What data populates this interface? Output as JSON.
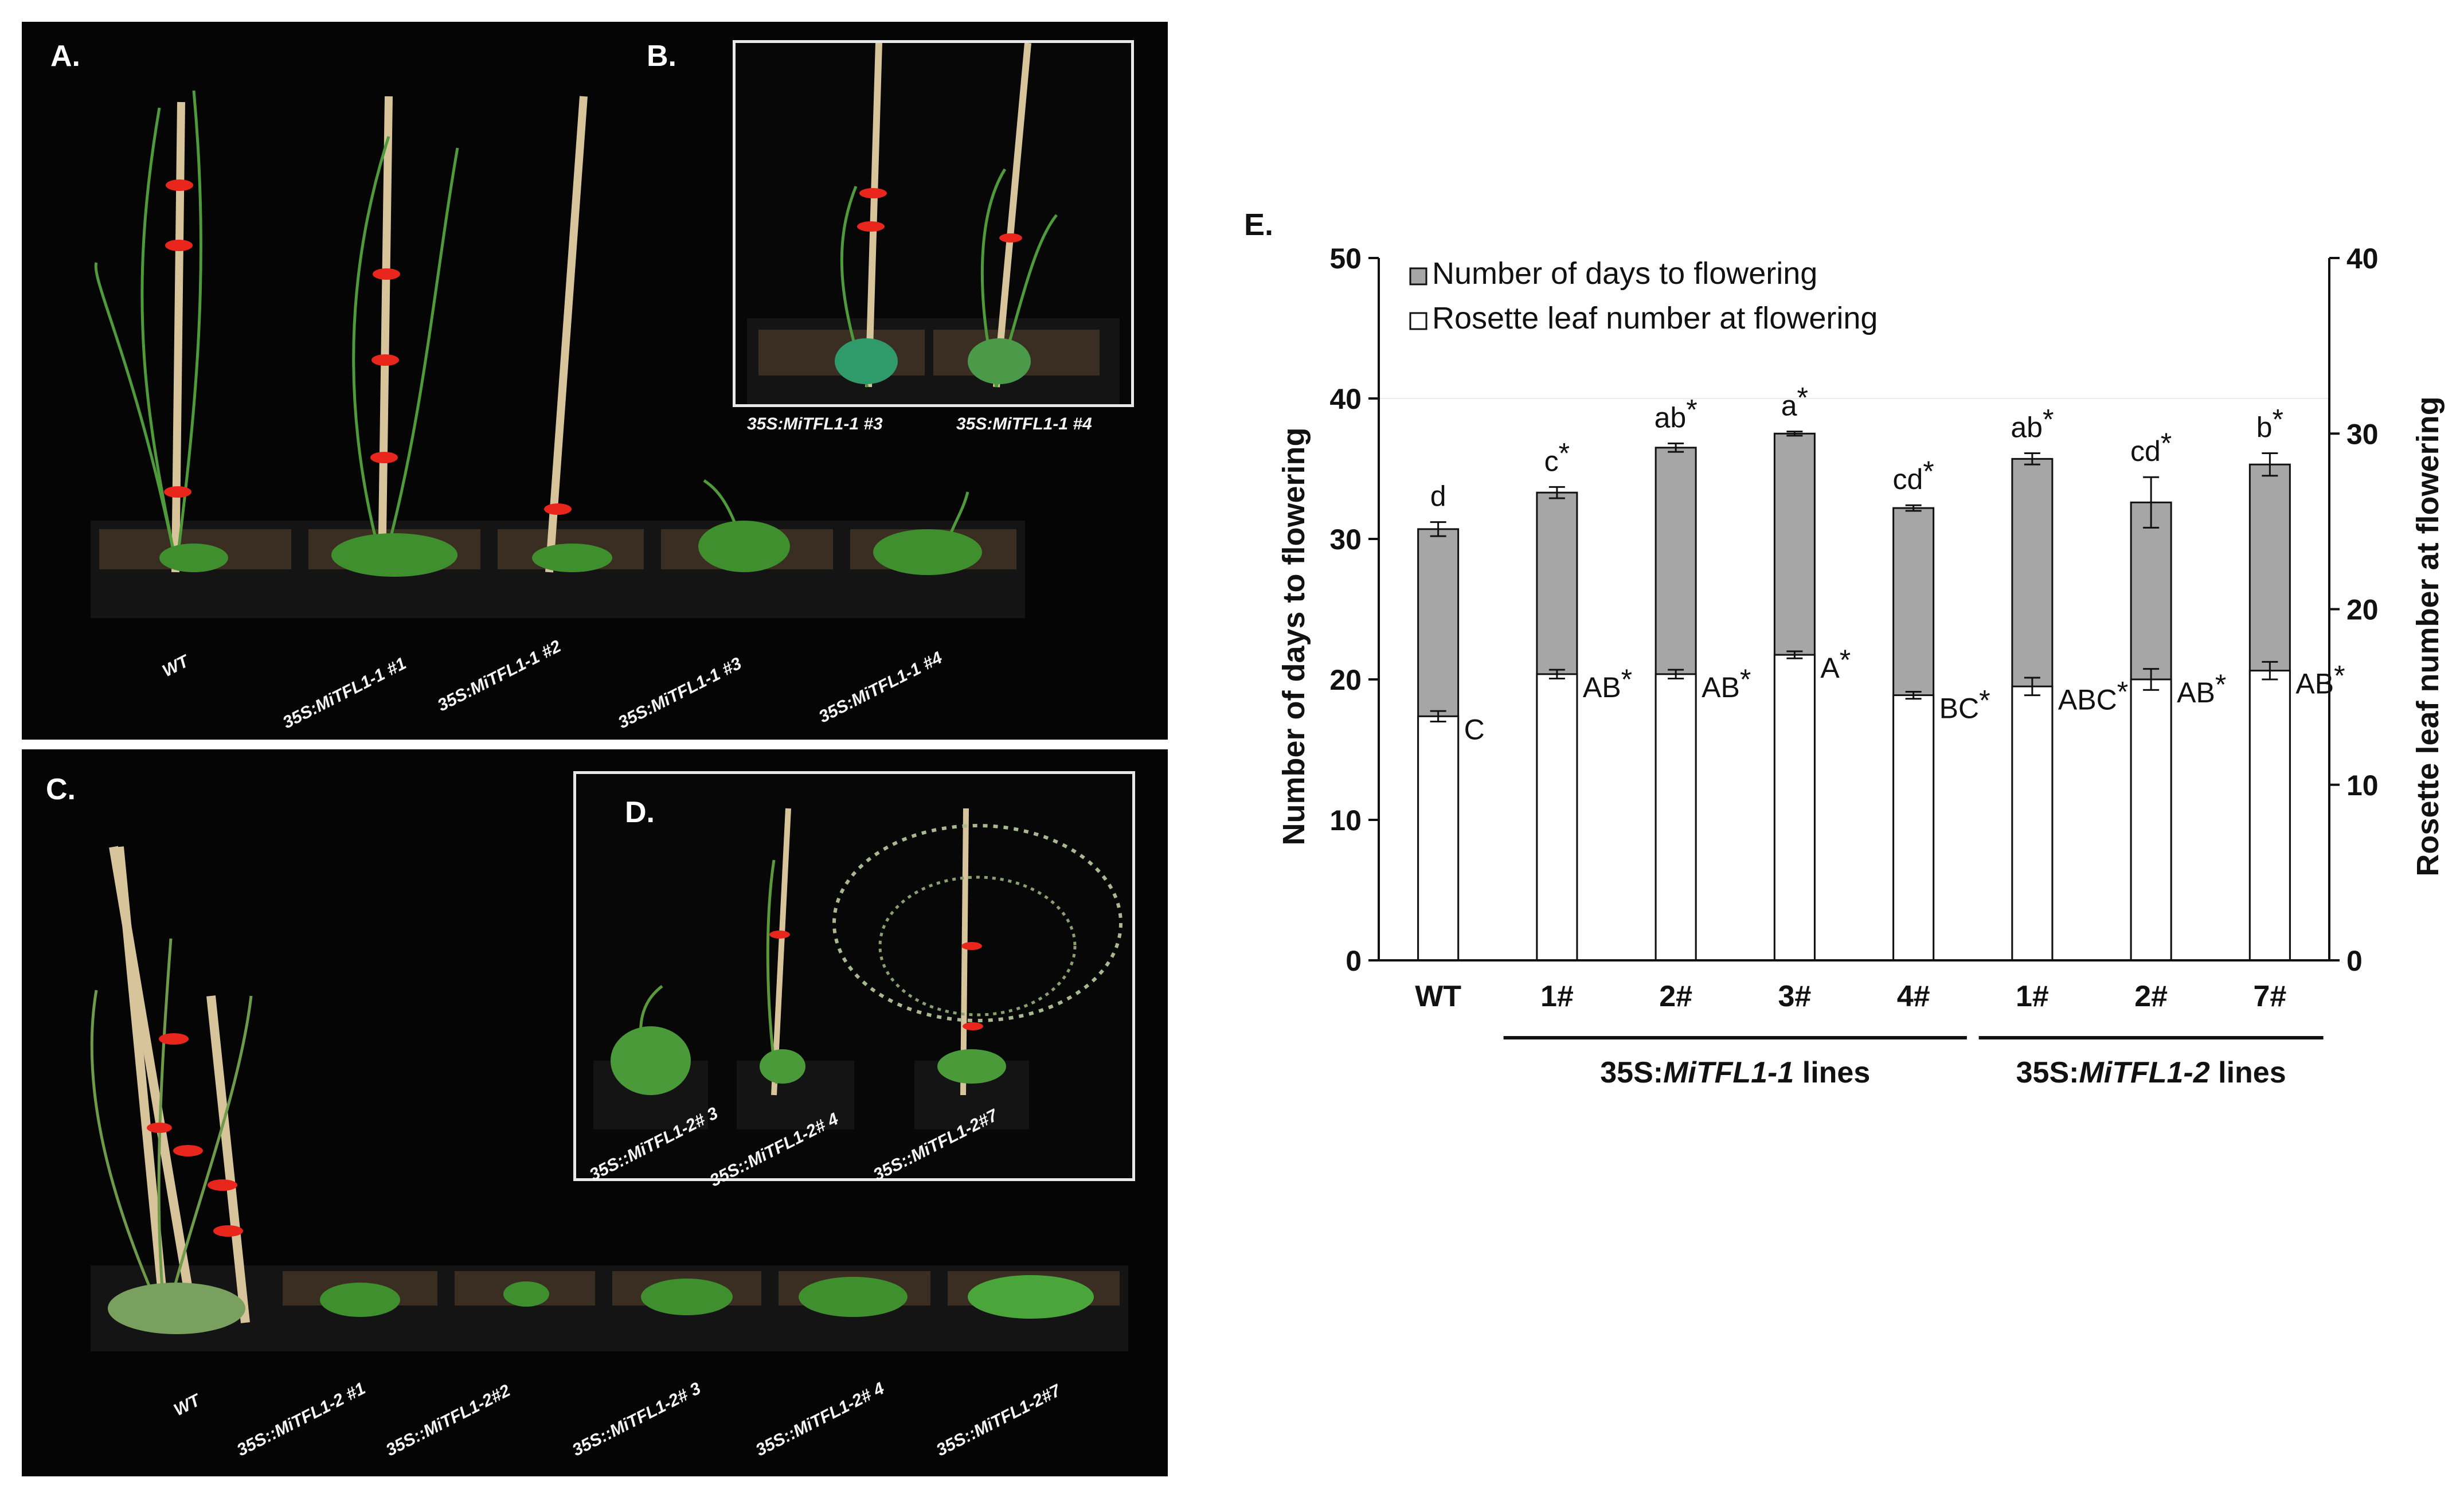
{
  "panels": {
    "A": {
      "label": "A.",
      "pots": [
        "WT",
        "35S:MiTFL1-1 #1",
        "35S:MiTFL1-1 #2",
        "35S:MiTFL1-1 #3",
        "35S:MiTFL1-1 #4"
      ]
    },
    "B": {
      "label": "B.",
      "captions": [
        "35S:MiTFL1-1 #3",
        "35S:MiTFL1-1 #4"
      ]
    },
    "C": {
      "label": "C.",
      "pots": [
        "WT",
        "35S::MiTFL1-2 #1",
        "35S::MiTFL1-2#2",
        "35S::MiTFL1-2# 3",
        "35S::MiTFL1-2# 4",
        "35S::MiTFL1-2#7"
      ]
    },
    "D": {
      "label": "D.",
      "pots": [
        "35S::MiTFL1-2# 3",
        "35S::MiTFL1-2# 4",
        "35S::MiTFL1-2#7"
      ]
    }
  },
  "colors": {
    "panel_bg": "#050505",
    "soil": "#3a2e22",
    "pot": "#141414",
    "stake": "#d8c49a",
    "tie": "#e8261c",
    "leaf": "#3f8f2e",
    "bar_days": "#a6a6a6",
    "bar_leaf": "#ffffff"
  },
  "chart_data": {
    "type": "bar",
    "panel_label": "E.",
    "categories": [
      "WT",
      "1#",
      "2#",
      "3#",
      "4#",
      "1#",
      "2#",
      "7#"
    ],
    "ylabel": "Number of days to flowering",
    "ylabel_right": "Rosette leaf number at flowering",
    "ylim": [
      0,
      50
    ],
    "ylim_right": [
      0,
      40
    ],
    "yticks": [
      0,
      10,
      20,
      30,
      40,
      50
    ],
    "yticks_right": [
      0,
      10,
      20,
      30,
      40
    ],
    "legend_position": "top-left",
    "series": [
      {
        "name": "Number of days to flowering",
        "axis": "left",
        "values": [
          30.7,
          33.3,
          36.5,
          37.5,
          32.2,
          35.7,
          32.6,
          35.3
        ],
        "errors": [
          0.5,
          0.4,
          0.3,
          0.15,
          0.2,
          0.4,
          1.8,
          0.8
        ],
        "labels": [
          "d",
          "c",
          "ab",
          "a",
          "cd",
          "ab",
          "cd",
          "b"
        ],
        "stars": [
          "",
          "*",
          "*",
          "*",
          "*",
          "*",
          "*",
          "*"
        ]
      },
      {
        "name": "Rosette leaf number at flowering",
        "axis": "right",
        "values": [
          13.9,
          16.3,
          16.3,
          17.4,
          15.1,
          15.6,
          16.0,
          16.5
        ],
        "errors": [
          0.3,
          0.25,
          0.25,
          0.2,
          0.2,
          0.5,
          0.6,
          0.5
        ],
        "labels": [
          "C",
          "AB",
          "AB",
          "A",
          "BC",
          "ABC",
          "AB",
          "AB"
        ],
        "stars": [
          "",
          "*",
          "*",
          "*",
          "*",
          "*",
          "*",
          "*"
        ]
      }
    ],
    "groups": [
      {
        "pre": "35S:",
        "italic": "MiTFL1-1",
        "post": " lines",
        "from": 1,
        "to": 4
      },
      {
        "pre": "35S:",
        "italic": "MiTFL1-2",
        "post": " lines",
        "from": 5,
        "to": 7
      }
    ]
  }
}
